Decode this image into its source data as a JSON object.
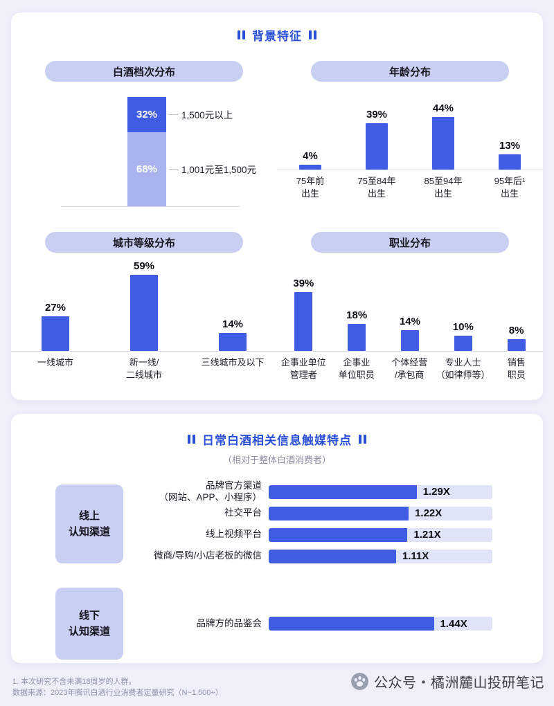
{
  "sections": {
    "background_title": "背景特征"
  },
  "footer": {
    "note1": "1. 本次研究不含未满18周岁的人群。",
    "note2": "数据来源：2023年腾讯白酒行业消费者定量研究（N~1,500+）",
    "watermark": "公众号・橘洲麓山投研笔记"
  },
  "colors": {
    "accent_blue": "#3f5ce2",
    "light_blue_segment": "#a9b4ee",
    "pill_background": "#c9cff2",
    "bar_track": "#e0e4f8",
    "title_blue": "#2b50d8",
    "page_background": "#edeff9"
  },
  "icons": {
    "title_decoration": "double-vertical-bars",
    "watermark_logo": "paw-print-in-circle"
  },
  "chart_data": [
    {
      "id": "tier",
      "type": "bar",
      "variant": "stacked-vertical",
      "title": "白酒档次分布",
      "unit": "%",
      "segments": [
        {
          "label": "1,500元以上",
          "value": 32,
          "display": "32%",
          "color": "#3f5ce2"
        },
        {
          "label": "1,001元至1,500元",
          "value": 68,
          "display": "68%",
          "color": "#a9b4ee"
        }
      ]
    },
    {
      "id": "age",
      "type": "bar",
      "title": "年龄分布",
      "unit": "%",
      "ylim": [
        0,
        50
      ],
      "categories": [
        [
          "75年前",
          "出生"
        ],
        [
          "75至84年",
          "出生"
        ],
        [
          "85至94年",
          "出生"
        ],
        [
          "95年后¹",
          "出生"
        ]
      ],
      "values": [
        4,
        39,
        44,
        13
      ],
      "labels": [
        "4%",
        "39%",
        "44%",
        "13%"
      ]
    },
    {
      "id": "city",
      "type": "bar",
      "title": "城市等级分布",
      "unit": "%",
      "ylim": [
        0,
        65
      ],
      "categories": [
        [
          "一线城市"
        ],
        [
          "新一线/",
          "二线城市"
        ],
        [
          "三线城市及以下"
        ]
      ],
      "values": [
        27,
        59,
        14
      ],
      "labels": [
        "27%",
        "59%",
        "14%"
      ]
    },
    {
      "id": "occupation",
      "type": "bar",
      "title": "职业分布",
      "unit": "%",
      "ylim": [
        0,
        45
      ],
      "categories": [
        [
          "企事业单位",
          "管理者"
        ],
        [
          "企事业",
          "单位职员"
        ],
        [
          "个体经营",
          "/承包商"
        ],
        [
          "专业人士",
          "（如律师等）"
        ],
        [
          "销售",
          "职员"
        ]
      ],
      "values": [
        39,
        18,
        14,
        10,
        8
      ],
      "labels": [
        "39%",
        "18%",
        "14%",
        "10%",
        "8%"
      ]
    },
    {
      "id": "media",
      "type": "bar",
      "variant": "horizontal",
      "title": "日常白酒相关信息触媒特点",
      "subtitle": "（相对于整体白酒消费者）",
      "unit": "relative index (X)",
      "xlim": [
        0,
        1.95
      ],
      "groups": [
        {
          "label": [
            "线上",
            "认知渠道"
          ],
          "rows": [
            {
              "label": [
                "品牌官方渠道",
                "（网站、APP、小程序）"
              ],
              "value": 1.29,
              "display": "1.29X"
            },
            {
              "label": [
                "社交平台"
              ],
              "value": 1.22,
              "display": "1.22X"
            },
            {
              "label": [
                "线上视频平台"
              ],
              "value": 1.21,
              "display": "1.21X"
            },
            {
              "label": [
                "微商/导购/小店老板的微信"
              ],
              "value": 1.11,
              "display": "1.11X"
            }
          ]
        },
        {
          "label": [
            "线下",
            "认知渠道"
          ],
          "rows": [
            {
              "label": [
                "品牌方的品鉴会"
              ],
              "value": 1.44,
              "display": "1.44X"
            }
          ]
        }
      ]
    }
  ]
}
